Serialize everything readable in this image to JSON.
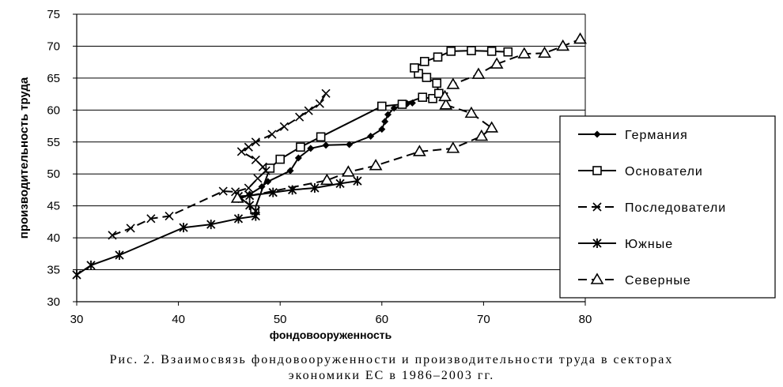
{
  "chart_data": {
    "type": "line",
    "title": "",
    "xlabel": "фондовооруженность",
    "ylabel": "производительность труда",
    "xlim": [
      30,
      80
    ],
    "ylim": [
      30,
      75
    ],
    "xticks": [
      30,
      40,
      50,
      60,
      70,
      80
    ],
    "yticks": [
      30,
      35,
      40,
      45,
      50,
      55,
      60,
      65,
      70,
      75
    ],
    "grid": "horizontal",
    "legend_position": "right",
    "series": [
      {
        "name": "Германия",
        "marker": "diamond",
        "dash": "solid",
        "points": [
          [
            45.9,
            46
          ],
          [
            47.0,
            46.8
          ],
          [
            48.2,
            48.0
          ],
          [
            48.8,
            48.8
          ],
          [
            51.0,
            50.5
          ],
          [
            51.8,
            52.5
          ],
          [
            53.0,
            54.0
          ],
          [
            54.5,
            54.5
          ],
          [
            56.8,
            54.6
          ],
          [
            58.9,
            55.9
          ],
          [
            60.0,
            57.0
          ],
          [
            60.3,
            58.2
          ],
          [
            60.6,
            59.3
          ],
          [
            61.2,
            60.3
          ],
          [
            62.5,
            61.0
          ],
          [
            63.0,
            61.1
          ]
        ]
      },
      {
        "name": "Основатели",
        "marker": "square",
        "dash": "solid",
        "points": [
          [
            47.5,
            44.4
          ],
          [
            49.0,
            50.9
          ],
          [
            50.0,
            52.3
          ],
          [
            52.0,
            54.2
          ],
          [
            54.0,
            55.8
          ],
          [
            60.0,
            60.6
          ],
          [
            62.0,
            60.9
          ],
          [
            64.0,
            62.0
          ],
          [
            65.0,
            61.8
          ],
          [
            65.6,
            62.6
          ],
          [
            65.4,
            64.2
          ],
          [
            64.4,
            65.1
          ],
          [
            63.6,
            65.7
          ],
          [
            63.2,
            66.6
          ],
          [
            64.2,
            67.6
          ],
          [
            65.5,
            68.3
          ],
          [
            66.8,
            69.2
          ],
          [
            68.8,
            69.3
          ],
          [
            70.8,
            69.2
          ],
          [
            72.4,
            69.1
          ]
        ]
      },
      {
        "name": "Последователи",
        "marker": "x",
        "dash": "dashed",
        "points": [
          [
            33.5,
            40.4
          ],
          [
            35.3,
            41.5
          ],
          [
            37.3,
            43.0
          ],
          [
            39.1,
            43.4
          ],
          [
            44.4,
            47.3
          ],
          [
            45.6,
            47.2
          ],
          [
            46.9,
            47.8
          ],
          [
            47.8,
            49.3
          ],
          [
            48.6,
            50.5
          ],
          [
            48.3,
            51.1
          ],
          [
            47.6,
            52.2
          ],
          [
            46.2,
            53.5
          ],
          [
            46.9,
            54.2
          ],
          [
            47.6,
            55.0
          ],
          [
            49.2,
            56.2
          ],
          [
            50.4,
            57.4
          ],
          [
            51.9,
            58.9
          ],
          [
            52.8,
            59.9
          ],
          [
            53.9,
            61.0
          ],
          [
            54.5,
            62.6
          ]
        ]
      },
      {
        "name": "Южные",
        "marker": "asterisk",
        "dash": "solid",
        "points": [
          [
            30.0,
            34.2
          ],
          [
            31.4,
            35.7
          ],
          [
            34.2,
            37.3
          ],
          [
            40.5,
            41.6
          ],
          [
            43.2,
            42.1
          ],
          [
            45.9,
            43.0
          ],
          [
            47.6,
            43.4
          ],
          [
            47.6,
            44.2
          ],
          [
            47.0,
            45.1
          ],
          [
            45.9,
            46.5
          ],
          [
            47.0,
            46.6
          ],
          [
            49.3,
            47.1
          ],
          [
            51.2,
            47.5
          ],
          [
            53.4,
            47.8
          ],
          [
            55.9,
            48.5
          ],
          [
            57.6,
            48.9
          ]
        ]
      },
      {
        "name": "Северные",
        "marker": "triangle",
        "dash": "dashed",
        "points": [
          [
            45.8,
            46.2
          ],
          [
            54.6,
            49.0
          ],
          [
            56.7,
            50.3
          ],
          [
            59.4,
            51.3
          ],
          [
            63.7,
            53.5
          ],
          [
            67.0,
            54.0
          ],
          [
            69.8,
            55.9
          ],
          [
            70.8,
            57.2
          ],
          [
            68.8,
            59.5
          ],
          [
            66.3,
            60.8
          ],
          [
            66.2,
            62.1
          ],
          [
            67.0,
            64.0
          ],
          [
            69.5,
            65.6
          ],
          [
            71.3,
            67.2
          ],
          [
            74.0,
            68.8
          ],
          [
            76.0,
            68.9
          ],
          [
            77.8,
            70.0
          ],
          [
            79.5,
            71.1
          ]
        ]
      }
    ]
  },
  "caption": {
    "line1": "Рис. 2. Взаимосвязь фондовооруженности и производительности труда в секторах",
    "line2": "экономики ЕС в 1986–2003 гг."
  }
}
